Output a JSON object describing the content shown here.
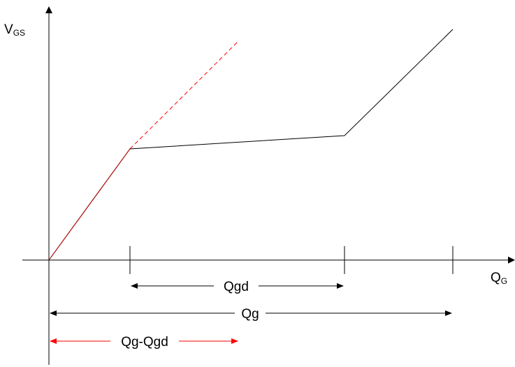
{
  "axes": {
    "y_label": {
      "main": "V",
      "sub": "GS"
    },
    "x_label": {
      "main": "Q",
      "sub": "G"
    }
  },
  "dimensions": {
    "qgd": "Qgd",
    "qg": "Qg",
    "qg_minus_qgd": "Qg-Qgd"
  },
  "colors": {
    "line": "#000000",
    "highlight": "#ff0000",
    "overlay_segment": "#c00000",
    "background": "#ffffff"
  }
}
